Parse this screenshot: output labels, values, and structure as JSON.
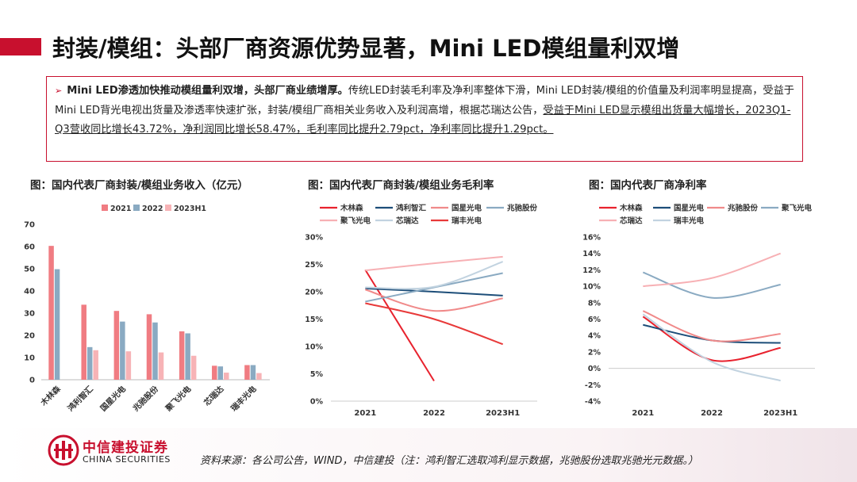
{
  "header": {
    "title": "封装/模组：头部厂商资源优势显著，Mini LED模组量利双增"
  },
  "summary": {
    "bullet": "➢",
    "bold": "Mini LED渗透加快推动模组量利双增，头部厂商业绩增厚。",
    "text1": "传统LED封装毛利率及净利率整体下滑，Mini LED封装/模组的价值量及利润率明显提高，受益于Mini LED背光电视出货量及渗透率快速扩张，封装/模组厂商相关业务收入及利润高增，根据芯瑞达公告，",
    "underlined": "受益于Mini LED显示模组出货量大幅增长，2023Q1-Q3营收同比增长43.72%，净利润同比增长58.47%，毛利率同比提升2.79pct，净利率同比提升1.29pct。"
  },
  "colors": {
    "accent": "#c8102e"
  },
  "chart_data": [
    {
      "type": "bar",
      "title": "图：国内代表厂商封装/模组业务收入（亿元）",
      "categories": [
        "木林森",
        "鸿利智汇",
        "国星光电",
        "兆驰股份",
        "聚飞光电",
        "芯瑞达",
        "瑞丰光电"
      ],
      "series": [
        {
          "name": "2021",
          "color": "#f07c82",
          "values": [
            60.3,
            33.8,
            31.0,
            29.5,
            21.8,
            6.3,
            6.6
          ]
        },
        {
          "name": "2022",
          "color": "#8aaac2",
          "values": [
            49.8,
            14.7,
            26.2,
            25.8,
            20.9,
            6.0,
            6.6
          ]
        },
        {
          "name": "2023H1",
          "color": "#f7b3b6",
          "values": [
            null,
            13.3,
            12.8,
            12.3,
            10.8,
            3.2,
            3.0
          ]
        }
      ],
      "ylim": [
        0,
        70
      ],
      "yticks": [
        "0",
        "10",
        "20",
        "30",
        "40",
        "50",
        "60",
        "70"
      ],
      "legend": "top"
    },
    {
      "type": "line",
      "title": "图：国内代表厂商封装/模组业务毛利率",
      "x": [
        "2021",
        "2022",
        "2023H1"
      ],
      "series": [
        {
          "name": "木林森",
          "color": "#e8222e",
          "values": [
            24.0,
            3.7,
            null
          ]
        },
        {
          "name": "鸿利智汇",
          "color": "#1d4e79",
          "values": [
            20.6,
            20.0,
            19.3
          ]
        },
        {
          "name": "国星光电",
          "color": "#f08a8a",
          "values": [
            20.4,
            16.5,
            18.8
          ]
        },
        {
          "name": "兆驰股份",
          "color": "#8aaac2",
          "values": [
            18.2,
            20.8,
            23.4
          ]
        },
        {
          "name": "聚飞光电",
          "color": "#f7b0b4",
          "values": [
            23.9,
            25.2,
            26.4
          ]
        },
        {
          "name": "芯瑞达",
          "color": "#c2d3e0",
          "values": [
            20.8,
            20.9,
            25.5
          ]
        },
        {
          "name": "瑞丰光电",
          "color": "#e83a3a",
          "values": [
            17.9,
            15.0,
            10.4
          ]
        }
      ],
      "ylim": [
        0,
        30
      ],
      "yticks": [
        "0%",
        "5%",
        "10%",
        "15%",
        "20%",
        "25%",
        "30%"
      ],
      "legend": "top"
    },
    {
      "type": "line",
      "title": "图：国内代表厂商净利率",
      "x": [
        "2021",
        "2022",
        "2023H1"
      ],
      "series": [
        {
          "name": "木林森",
          "color": "#e8222e",
          "values": [
            6.3,
            1.0,
            2.5
          ]
        },
        {
          "name": "国星光电",
          "color": "#1d4e79",
          "values": [
            5.3,
            3.4,
            3.1
          ]
        },
        {
          "name": "兆驰股份",
          "color": "#f08a8a",
          "values": [
            7.0,
            3.4,
            4.2
          ]
        },
        {
          "name": "聚飞光电",
          "color": "#8aaac2",
          "values": [
            11.7,
            8.6,
            10.2
          ]
        },
        {
          "name": "芯瑞达",
          "color": "#f7b0b4",
          "values": [
            10.0,
            11.0,
            14.0
          ]
        },
        {
          "name": "瑞丰光电",
          "color": "#c2d3e0",
          "values": [
            6.6,
            0.8,
            -1.5
          ]
        }
      ],
      "ylim": [
        -4,
        16
      ],
      "yticks": [
        "-4%",
        "-2%",
        "0%",
        "2%",
        "4%",
        "6%",
        "8%",
        "10%",
        "12%",
        "14%",
        "16%"
      ],
      "legend": "top"
    }
  ],
  "footer": {
    "logo_cn": "中信建投证券",
    "logo_en": "CHINA SECURITIES",
    "source": "资料来源：各公司公告，WIND，中信建投（注：鸿利智汇选取鸿利显示数据，兆驰股份选取兆驰光元数据。）"
  }
}
